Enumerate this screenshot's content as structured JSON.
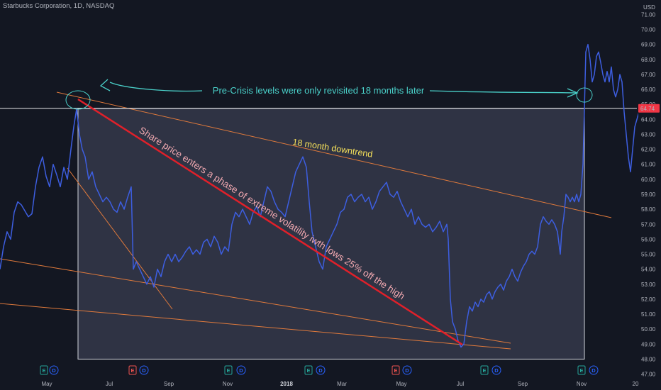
{
  "header": {
    "title": "Starbucks Corporation, 1D, NASDAQ"
  },
  "chart_data": {
    "type": "line",
    "y_axis": {
      "currency_label": "USD",
      "range": [
        46.6,
        71.4
      ],
      "ticks": [
        "47.00",
        "48.00",
        "49.00",
        "50.00",
        "51.00",
        "52.00",
        "53.00",
        "54.00",
        "55.00",
        "56.00",
        "57.00",
        "58.00",
        "59.00",
        "60.00",
        "61.00",
        "62.00",
        "63.00",
        "64.00",
        "65.00",
        "66.00",
        "67.00",
        "68.00",
        "69.00",
        "70.00",
        "71.00"
      ],
      "current_price_label": "64.74",
      "current_price": 64.74
    },
    "x_axis": {
      "ticks": [
        {
          "label": "May",
          "bold": false
        },
        {
          "label": "Jul",
          "bold": false
        },
        {
          "label": "Sep",
          "bold": false
        },
        {
          "label": "Nov",
          "bold": false
        },
        {
          "label": "2018",
          "bold": true
        },
        {
          "label": "Mar",
          "bold": false
        },
        {
          "label": "May",
          "bold": false
        },
        {
          "label": "Jul",
          "bold": false
        },
        {
          "label": "Sep",
          "bold": false
        },
        {
          "label": "Nov",
          "bold": false
        },
        {
          "label": "20",
          "bold": false
        }
      ]
    },
    "series": [
      {
        "color": "#3d5ee0",
        "points": [
          [
            0,
            54.0
          ],
          [
            5,
            55.5
          ],
          [
            10,
            56.5
          ],
          [
            15,
            56.0
          ],
          [
            20,
            57.8
          ],
          [
            25,
            58.5
          ],
          [
            30,
            58.3
          ],
          [
            35,
            57.9
          ],
          [
            40,
            57.5
          ],
          [
            45,
            57.7
          ],
          [
            50,
            59.5
          ],
          [
            55,
            60.8
          ],
          [
            60,
            61.5
          ],
          [
            65,
            60.2
          ],
          [
            70,
            59.5
          ],
          [
            75,
            61.0
          ],
          [
            80,
            60.3
          ],
          [
            85,
            59.5
          ],
          [
            90,
            60.8
          ],
          [
            95,
            60.0
          ],
          [
            100,
            62.0
          ],
          [
            104,
            63.5
          ],
          [
            108,
            64.7
          ],
          [
            112,
            63.0
          ],
          [
            116,
            62.0
          ],
          [
            120,
            61.5
          ],
          [
            125,
            60.0
          ],
          [
            130,
            60.5
          ],
          [
            135,
            59.5
          ],
          [
            140,
            59.0
          ],
          [
            145,
            58.5
          ],
          [
            150,
            58.8
          ],
          [
            155,
            58.5
          ],
          [
            160,
            58.0
          ],
          [
            165,
            57.8
          ],
          [
            170,
            58.5
          ],
          [
            175,
            58.0
          ],
          [
            180,
            58.8
          ],
          [
            185,
            59.5
          ],
          [
            188,
            54.0
          ],
          [
            192,
            54.5
          ],
          [
            197,
            54.0
          ],
          [
            202,
            53.5
          ],
          [
            207,
            53.0
          ],
          [
            212,
            53.5
          ],
          [
            217,
            52.8
          ],
          [
            222,
            54.0
          ],
          [
            227,
            53.5
          ],
          [
            232,
            54.5
          ],
          [
            237,
            55.0
          ],
          [
            242,
            54.5
          ],
          [
            247,
            55.0
          ],
          [
            252,
            54.5
          ],
          [
            257,
            54.8
          ],
          [
            262,
            55.2
          ],
          [
            267,
            55.5
          ],
          [
            272,
            55.0
          ],
          [
            277,
            55.3
          ],
          [
            282,
            55.0
          ],
          [
            287,
            55.8
          ],
          [
            292,
            56.0
          ],
          [
            297,
            55.5
          ],
          [
            302,
            56.2
          ],
          [
            307,
            55.8
          ],
          [
            312,
            55.0
          ],
          [
            317,
            55.5
          ],
          [
            322,
            55.2
          ],
          [
            327,
            57.0
          ],
          [
            332,
            57.8
          ],
          [
            337,
            57.5
          ],
          [
            342,
            58.0
          ],
          [
            347,
            57.5
          ],
          [
            352,
            57.0
          ],
          [
            357,
            57.8
          ],
          [
            362,
            58.2
          ],
          [
            367,
            57.5
          ],
          [
            372,
            58.5
          ],
          [
            377,
            59.5
          ],
          [
            382,
            59.2
          ],
          [
            387,
            58.5
          ],
          [
            392,
            58.0
          ],
          [
            397,
            57.8
          ],
          [
            402,
            57.5
          ],
          [
            407,
            58.5
          ],
          [
            412,
            59.5
          ],
          [
            417,
            60.5
          ],
          [
            422,
            61.0
          ],
          [
            427,
            61.5
          ],
          [
            432,
            60.8
          ],
          [
            436,
            58.5
          ],
          [
            440,
            56.5
          ],
          [
            445,
            55.5
          ],
          [
            450,
            54.5
          ],
          [
            455,
            54.0
          ],
          [
            460,
            55.5
          ],
          [
            465,
            56.0
          ],
          [
            470,
            56.5
          ],
          [
            475,
            57.0
          ],
          [
            480,
            57.8
          ],
          [
            485,
            58.0
          ],
          [
            490,
            58.8
          ],
          [
            495,
            59.0
          ],
          [
            500,
            58.5
          ],
          [
            505,
            58.8
          ],
          [
            510,
            59.0
          ],
          [
            515,
            58.5
          ],
          [
            520,
            58.8
          ],
          [
            525,
            58.0
          ],
          [
            530,
            58.5
          ],
          [
            535,
            59.2
          ],
          [
            540,
            59.5
          ],
          [
            545,
            59.8
          ],
          [
            550,
            59.0
          ],
          [
            555,
            58.8
          ],
          [
            560,
            59.2
          ],
          [
            565,
            58.5
          ],
          [
            570,
            58.0
          ],
          [
            575,
            57.5
          ],
          [
            580,
            58.0
          ],
          [
            585,
            57.0
          ],
          [
            590,
            57.5
          ],
          [
            595,
            57.0
          ],
          [
            600,
            56.8
          ],
          [
            605,
            57.0
          ],
          [
            610,
            56.5
          ],
          [
            615,
            56.8
          ],
          [
            620,
            57.2
          ],
          [
            625,
            56.5
          ],
          [
            630,
            57.0
          ],
          [
            632,
            56.0
          ],
          [
            635,
            52.0
          ],
          [
            638,
            50.5
          ],
          [
            642,
            50.0
          ],
          [
            646,
            49.2
          ],
          [
            650,
            48.8
          ],
          [
            654,
            49.0
          ],
          [
            658,
            50.5
          ],
          [
            662,
            51.5
          ],
          [
            666,
            51.2
          ],
          [
            670,
            51.8
          ],
          [
            674,
            51.5
          ],
          [
            678,
            52.0
          ],
          [
            682,
            51.8
          ],
          [
            686,
            52.3
          ],
          [
            690,
            52.5
          ],
          [
            694,
            52.0
          ],
          [
            698,
            52.5
          ],
          [
            702,
            52.8
          ],
          [
            706,
            53.0
          ],
          [
            710,
            52.6
          ],
          [
            714,
            53.2
          ],
          [
            718,
            53.5
          ],
          [
            722,
            54.0
          ],
          [
            726,
            53.5
          ],
          [
            730,
            53.2
          ],
          [
            734,
            53.8
          ],
          [
            738,
            54.2
          ],
          [
            742,
            54.5
          ],
          [
            746,
            55.0
          ],
          [
            750,
            55.2
          ],
          [
            754,
            55.0
          ],
          [
            758,
            55.5
          ],
          [
            762,
            57.0
          ],
          [
            766,
            57.5
          ],
          [
            770,
            57.2
          ],
          [
            774,
            57.0
          ],
          [
            778,
            57.3
          ],
          [
            782,
            57.0
          ],
          [
            786,
            56.5
          ],
          [
            790,
            55.0
          ],
          [
            792,
            56.5
          ],
          [
            795,
            57.5
          ],
          [
            798,
            59.0
          ],
          [
            801,
            58.8
          ],
          [
            804,
            58.5
          ],
          [
            807,
            58.8
          ],
          [
            810,
            58.5
          ],
          [
            813,
            59.0
          ],
          [
            816,
            58.5
          ],
          [
            819,
            59.0
          ],
          [
            822,
            61.0
          ],
          [
            824,
            64.7
          ],
          [
            826,
            68.5
          ],
          [
            829,
            69.0
          ],
          [
            832,
            68.0
          ],
          [
            835,
            66.5
          ],
          [
            838,
            67.0
          ],
          [
            841,
            68.2
          ],
          [
            844,
            68.5
          ],
          [
            847,
            67.8
          ],
          [
            850,
            67.0
          ],
          [
            853,
            66.5
          ],
          [
            856,
            67.2
          ],
          [
            859,
            66.5
          ],
          [
            862,
            67.5
          ],
          [
            865,
            66.0
          ],
          [
            868,
            65.5
          ],
          [
            871,
            66.0
          ],
          [
            874,
            67.0
          ],
          [
            877,
            66.5
          ],
          [
            880,
            64.5
          ],
          [
            883,
            63.0
          ],
          [
            886,
            61.5
          ],
          [
            889,
            60.5
          ],
          [
            892,
            62.0
          ],
          [
            895,
            63.5
          ],
          [
            898,
            64.0
          ],
          [
            901,
            64.5
          ]
        ]
      }
    ],
    "annotations": {
      "top_note": "Pre-Crisis levels were only revisited 18 months later",
      "downtrend_label": "18 month downtrend",
      "diagonal_note": "Share price enters a phase of extreme volatility iwth lows 25% off the high"
    },
    "event_markers": [
      {
        "kind": "E",
        "color": "#26a69a"
      },
      {
        "kind": "D",
        "color": "#2962ff"
      },
      {
        "kind": "E",
        "color": "#ef5350"
      },
      {
        "kind": "D",
        "color": "#2962ff"
      },
      {
        "kind": "E",
        "color": "#26a69a"
      },
      {
        "kind": "D",
        "color": "#2962ff"
      },
      {
        "kind": "E",
        "color": "#26a69a"
      },
      {
        "kind": "D",
        "color": "#2962ff"
      },
      {
        "kind": "E",
        "color": "#ef5350"
      },
      {
        "kind": "D",
        "color": "#2962ff"
      },
      {
        "kind": "E",
        "color": "#26a69a"
      },
      {
        "kind": "D",
        "color": "#2962ff"
      },
      {
        "kind": "E",
        "color": "#26a69a"
      },
      {
        "kind": "D",
        "color": "#2962ff"
      }
    ],
    "colors": {
      "background": "#131722",
      "price_line": "#3d5ee0",
      "trendline": "#e07a3c",
      "red_line": "#e0202a",
      "highlight_box": "#3a3f52",
      "annotation_cyan": "#4ad0c9",
      "annotation_yellow": "#f5e05a",
      "annotation_pink": "#f0a8b0",
      "price_tag": "#f23645"
    },
    "grid": false
  }
}
